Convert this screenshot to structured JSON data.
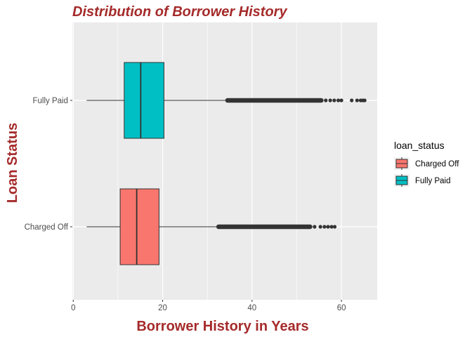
{
  "chart_data": {
    "type": "boxplot",
    "orientation": "horizontal",
    "title": "Distribution of Borrower History",
    "xlabel": "Borrower History in Years",
    "ylabel": "Loan Status",
    "xlim": [
      0,
      68
    ],
    "x_ticks": [
      0,
      20,
      40,
      60
    ],
    "categories": [
      "Charged Off",
      "Fully Paid"
    ],
    "grid": true,
    "legend": {
      "title": "loan_status",
      "position": "right",
      "entries": [
        "Charged Off",
        "Fully Paid"
      ]
    },
    "colors": {
      "Charged Off": "#F8766D",
      "Fully Paid": "#00BFC4",
      "panel": "#EBEBEB",
      "grid": "#FFFFFF",
      "title": "#A52A2A"
    },
    "boxes": [
      {
        "category": "Charged Off",
        "min": 3,
        "q1": 10.5,
        "median": 14.2,
        "q3": 19.2,
        "whisker_max": 32,
        "outlier_range": [
          32,
          53.5
        ],
        "outliers": [
          54,
          55.3,
          56.2,
          57,
          57.8,
          58.5
        ]
      },
      {
        "category": "Fully Paid",
        "min": 3,
        "q1": 11.4,
        "median": 15.1,
        "q3": 20.3,
        "whisker_max": 34,
        "outlier_range": [
          34,
          56
        ],
        "outliers": [
          56.5,
          57.5,
          58.4,
          59.3,
          60,
          62.3,
          63.5,
          64.3,
          64.8,
          65.2
        ]
      }
    ]
  }
}
